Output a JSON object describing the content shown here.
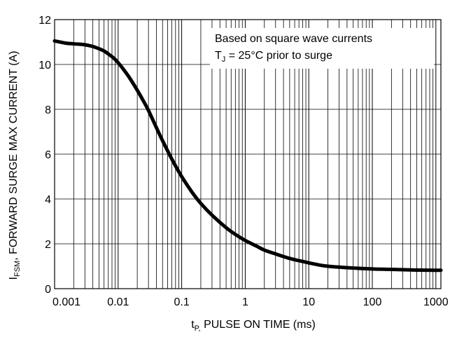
{
  "chart_data": {
    "type": "line",
    "x_scale": "log",
    "xlim": [
      0.001,
      1200
    ],
    "ylim": [
      0,
      12
    ],
    "grid": true,
    "xlabel": {
      "main": "t",
      "subscript": "P,",
      "rest": " PULSE ON TIME (ms)"
    },
    "ylabel": {
      "main": "I",
      "subscript": "FSM",
      "rest": ", FORWARD SURGE MAX CURRENT (A)"
    },
    "x_ticks": [
      {
        "value": 0.001,
        "label": "0.001"
      },
      {
        "value": 0.01,
        "label": "0.01"
      },
      {
        "value": 0.1,
        "label": "0.1"
      },
      {
        "value": 1,
        "label": "1"
      },
      {
        "value": 10,
        "label": "10"
      },
      {
        "value": 100,
        "label": "100"
      },
      {
        "value": 1000,
        "label": "1000"
      }
    ],
    "y_ticks": [
      {
        "value": 0,
        "label": "0"
      },
      {
        "value": 2,
        "label": "2"
      },
      {
        "value": 4,
        "label": "4"
      },
      {
        "value": 6,
        "label": "6"
      },
      {
        "value": 8,
        "label": "8"
      },
      {
        "value": 10,
        "label": "10"
      },
      {
        "value": 12,
        "label": "12"
      }
    ],
    "annotation": {
      "line1": "Based on square wave currents",
      "line2": {
        "main": "T",
        "subscript": "J",
        "rest": " = 25°C prior to surge"
      }
    },
    "series": [
      {
        "color": "#000000",
        "x": [
          0.001,
          0.0015,
          0.002,
          0.003,
          0.004,
          0.005,
          0.006,
          0.007,
          0.008,
          0.009,
          0.01,
          0.012,
          0.015,
          0.02,
          0.025,
          0.03,
          0.04,
          0.05,
          0.07,
          0.1,
          0.15,
          0.2,
          0.3,
          0.5,
          0.7,
          1,
          1.5,
          2,
          3,
          5,
          7,
          10,
          15,
          20,
          30,
          50,
          100,
          200,
          500,
          1000,
          1200
        ],
        "y": [
          11.05,
          10.95,
          10.92,
          10.88,
          10.8,
          10.7,
          10.6,
          10.47,
          10.35,
          10.22,
          10.08,
          9.8,
          9.42,
          8.85,
          8.37,
          7.95,
          7.18,
          6.6,
          5.78,
          5.0,
          4.25,
          3.8,
          3.28,
          2.72,
          2.42,
          2.15,
          1.9,
          1.72,
          1.55,
          1.35,
          1.25,
          1.15,
          1.05,
          1.0,
          0.96,
          0.92,
          0.88,
          0.86,
          0.83,
          0.82,
          0.82
        ]
      }
    ]
  }
}
